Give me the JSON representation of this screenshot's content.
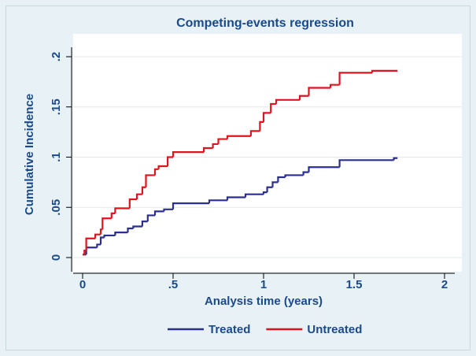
{
  "chart_data": {
    "type": "line",
    "step": "post",
    "title": "Competing-events regression",
    "xlabel": "Analysis time (years)",
    "ylabel": "Cumulative Incidence",
    "xlim": [
      0,
      2
    ],
    "ylim": [
      0,
      0.2
    ],
    "xticks": [
      0,
      {
        "value": 0.5,
        "label": ".5"
      },
      1,
      1.5,
      2
    ],
    "yticks": [
      0,
      {
        "value": 0.05,
        "label": ".05"
      },
      {
        "value": 0.1,
        "label": ".1"
      },
      {
        "value": 0.15,
        "label": ".15"
      },
      {
        "value": 0.2,
        "label": ".2"
      }
    ],
    "grid": true,
    "legend": "bottom",
    "series": [
      {
        "name": "Treated",
        "color": "#2b2f8f",
        "x": [
          0,
          0.02,
          0.08,
          0.1,
          0.12,
          0.18,
          0.25,
          0.28,
          0.33,
          0.36,
          0.4,
          0.45,
          0.5,
          0.7,
          0.8,
          0.9,
          1.0,
          1.02,
          1.05,
          1.08,
          1.12,
          1.22,
          1.25,
          1.42,
          1.72,
          1.74
        ],
        "values": [
          0.003,
          0.01,
          0.013,
          0.02,
          0.022,
          0.025,
          0.029,
          0.031,
          0.036,
          0.042,
          0.046,
          0.048,
          0.054,
          0.057,
          0.06,
          0.063,
          0.065,
          0.07,
          0.075,
          0.08,
          0.082,
          0.085,
          0.09,
          0.097,
          0.099,
          0.099
        ]
      },
      {
        "name": "Untreated",
        "color": "#e0141e",
        "x": [
          0,
          0.01,
          0.02,
          0.07,
          0.1,
          0.11,
          0.16,
          0.18,
          0.26,
          0.3,
          0.33,
          0.35,
          0.4,
          0.42,
          0.47,
          0.5,
          0.67,
          0.72,
          0.75,
          0.8,
          0.93,
          0.98,
          1.0,
          1.04,
          1.07,
          1.2,
          1.25,
          1.37,
          1.42,
          1.6,
          1.74
        ],
        "values": [
          0.003,
          0.007,
          0.019,
          0.023,
          0.028,
          0.039,
          0.044,
          0.049,
          0.058,
          0.063,
          0.07,
          0.082,
          0.088,
          0.091,
          0.1,
          0.105,
          0.109,
          0.113,
          0.118,
          0.121,
          0.126,
          0.135,
          0.144,
          0.153,
          0.157,
          0.161,
          0.169,
          0.172,
          0.184,
          0.186,
          0.186
        ]
      }
    ]
  }
}
